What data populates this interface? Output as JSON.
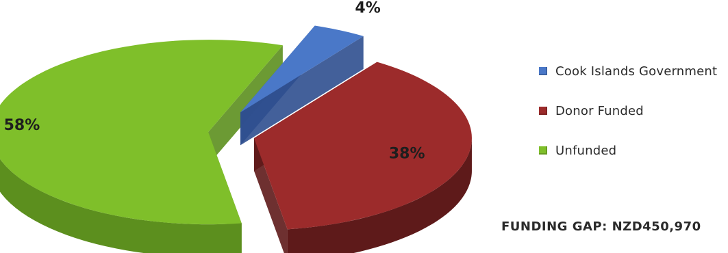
{
  "chart_data": {
    "type": "pie",
    "style": "3d-exploded",
    "slices": [
      {
        "label": "Cook Islands Government",
        "value": 4,
        "value_label": "4%",
        "color": "#4a78c8",
        "side_color": "#2f4f8f"
      },
      {
        "label": "Donor Funded",
        "value": 38,
        "value_label": "38%",
        "color": "#9c2b2b",
        "side_color": "#5e1a1a"
      },
      {
        "label": "Unfunded",
        "value": 58,
        "value_label": "58%",
        "color": "#7fbf2a",
        "side_color": "#5c8f1e"
      }
    ],
    "legend_position": "right",
    "note": "FUNDING GAP: NZD450,970"
  }
}
